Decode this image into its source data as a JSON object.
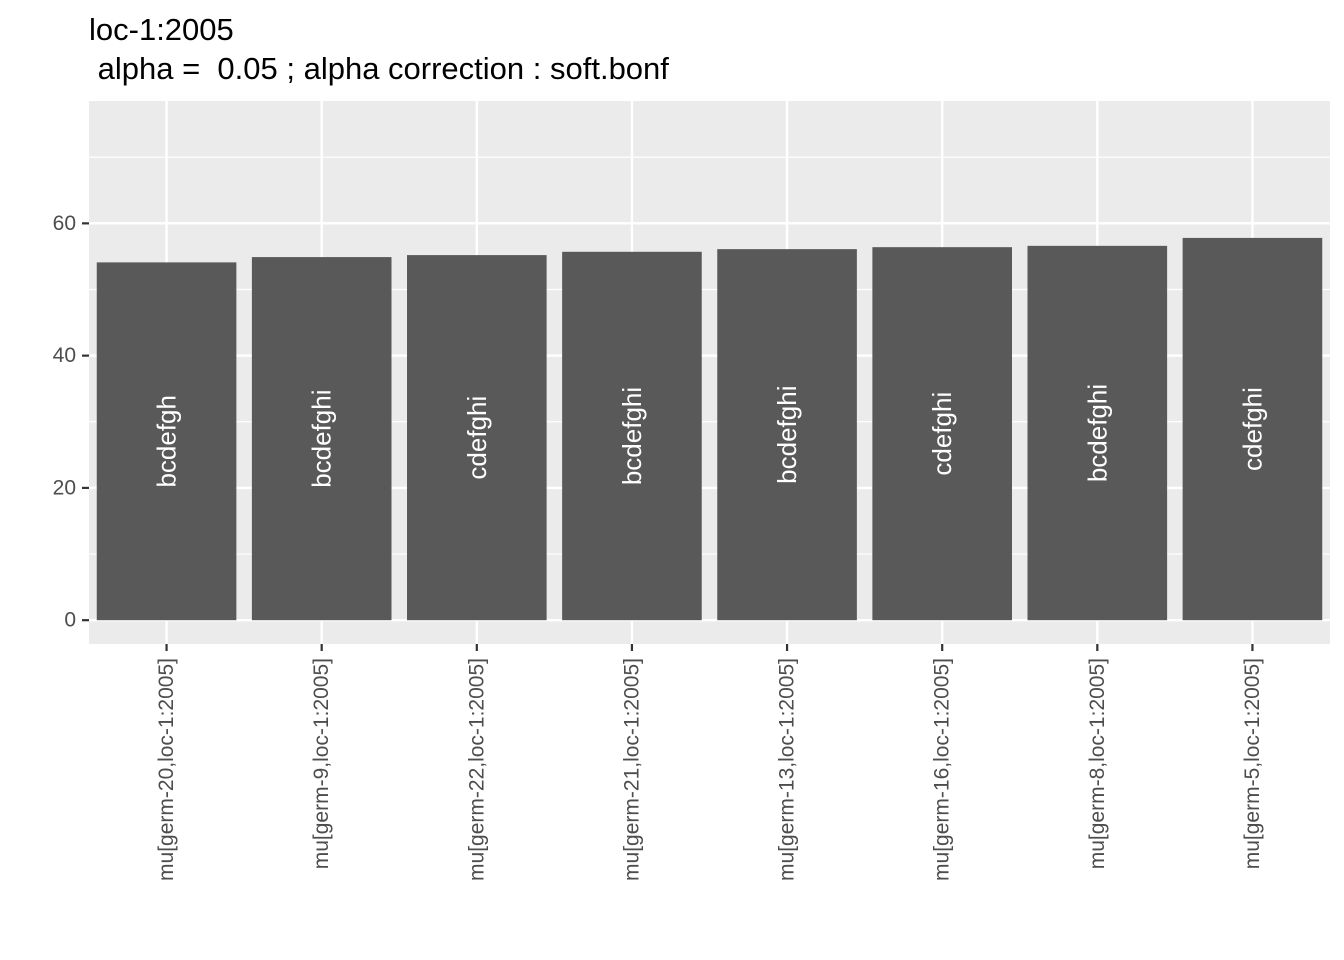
{
  "chart_data": {
    "type": "bar",
    "title": "loc-1:2005",
    "subtitle": " alpha =  0.05 ; alpha correction : soft.bonf",
    "xlabel": "",
    "ylabel": "",
    "categories": [
      "mu[germ-20,loc-1:2005]",
      "mu[germ-9,loc-1:2005]",
      "mu[germ-22,loc-1:2005]",
      "mu[germ-21,loc-1:2005]",
      "mu[germ-13,loc-1:2005]",
      "mu[germ-16,loc-1:2005]",
      "mu[germ-8,loc-1:2005]",
      "mu[germ-5,loc-1:2005]"
    ],
    "values": [
      54.1,
      54.9,
      55.2,
      55.7,
      56.1,
      56.4,
      56.6,
      57.8
    ],
    "bar_labels": [
      "bcdefgh",
      "bcdefghi",
      "cdefghi",
      "bcdefghi",
      "bcdefghi",
      "cdefghi",
      "bcdefghi",
      "cdefghi"
    ],
    "y_ticks": [
      0,
      20,
      40,
      60
    ],
    "ylim": [
      -3.6,
      78.5
    ],
    "grid": true,
    "legend": "none",
    "colors": {
      "panel": "#ebebeb",
      "grid": "#ffffff",
      "bar": "#595959",
      "bar_label": "#ffffff",
      "tick": "#333333",
      "tick_label": "#4d4d4d"
    }
  }
}
